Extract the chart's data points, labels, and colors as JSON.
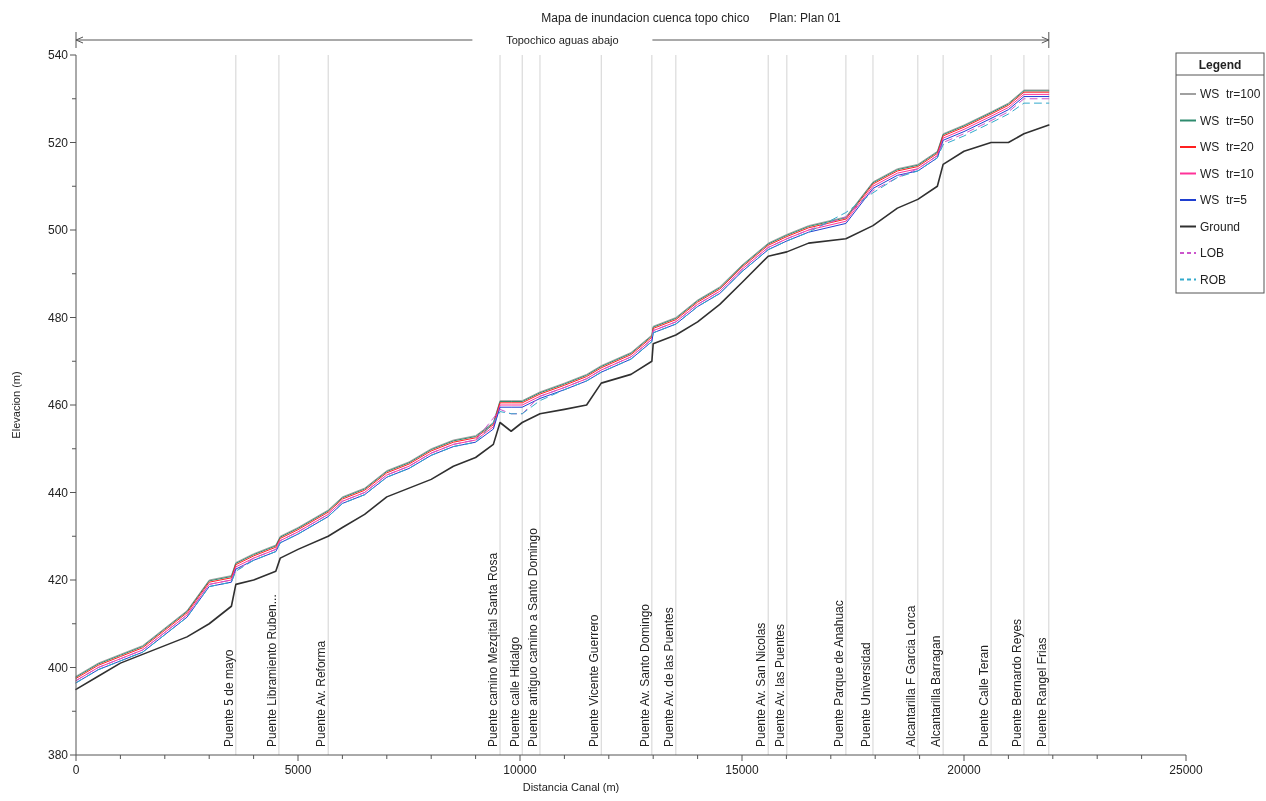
{
  "chart_data": {
    "type": "line",
    "title": "Mapa de inundacion cuenca topo chico      Plan: Plan 01",
    "xlabel": "Distancia Canal (m)",
    "ylabel": "Elevacion (m)",
    "legend_title": "Legend",
    "x": [
      0,
      500,
      1000,
      1500,
      2000,
      2500,
      3000,
      3500,
      3600,
      4000,
      4500,
      4600,
      5000,
      5680,
      6000,
      6500,
      7000,
      7500,
      8000,
      8500,
      9000,
      9400,
      9550,
      9800,
      10050,
      10450,
      11000,
      11500,
      11830,
      12500,
      12970,
      13000,
      13510,
      14000,
      14500,
      15000,
      15590,
      16010,
      16500,
      17340,
      17950,
      18500,
      18960,
      19400,
      19530,
      20000,
      20610,
      21000,
      21350,
      21910
    ],
    "xlim": [
      0,
      25000
    ],
    "ylim": [
      380,
      540
    ],
    "xticks": [
      0,
      {
        "value": 1000,
        "label": null
      },
      {
        "value": 2000,
        "label": null
      },
      {
        "value": 3000,
        "label": null
      },
      {
        "value": 4000,
        "label": null
      },
      5000,
      {
        "value": 6000,
        "label": null
      },
      {
        "value": 7000,
        "label": null
      },
      {
        "value": 8000,
        "label": null
      },
      {
        "value": 9000,
        "label": null
      },
      10000,
      {
        "value": 11000,
        "label": null
      },
      {
        "value": 12000,
        "label": null
      },
      {
        "value": 13000,
        "label": null
      },
      {
        "value": 14000,
        "label": null
      },
      15000,
      {
        "value": 16000,
        "label": null
      },
      {
        "value": 17000,
        "label": null
      },
      {
        "value": 18000,
        "label": null
      },
      {
        "value": 19000,
        "label": null
      },
      20000,
      {
        "value": 21000,
        "label": null
      },
      {
        "value": 22000,
        "label": null
      },
      {
        "value": 23000,
        "label": null
      },
      {
        "value": 24000,
        "label": null
      },
      25000
    ],
    "yticks": [
      380,
      {
        "value": 390,
        "label": null
      },
      400,
      {
        "value": 410,
        "label": null
      },
      420,
      {
        "value": 430,
        "label": null
      },
      440,
      {
        "value": 450,
        "label": null
      },
      460,
      {
        "value": 470,
        "label": null
      },
      480,
      {
        "value": 490,
        "label": null
      },
      500,
      {
        "value": 510,
        "label": null
      },
      520,
      {
        "value": 530,
        "label": null
      },
      540
    ],
    "grid": false,
    "legend": "right",
    "marker": "none",
    "series": [
      {
        "name": "WS  tr=100",
        "color": "#a0a0a0",
        "line_style": "solid",
        "values": [
          398,
          401,
          403,
          405,
          409,
          413,
          420,
          421,
          424,
          426,
          428,
          430,
          432,
          436,
          439,
          441,
          445,
          447,
          450,
          452,
          453,
          456,
          461,
          461,
          461,
          463,
          465,
          467,
          469,
          472,
          476,
          478,
          480,
          484,
          487,
          492,
          497,
          499,
          501,
          503,
          511,
          514,
          515,
          518,
          522,
          524,
          527,
          529,
          532,
          532
        ]
      },
      {
        "name": "WS  tr=50",
        "color": "#2e8b6e",
        "line_style": "solid",
        "values": [
          397.8,
          400.8,
          402.8,
          404.8,
          408.8,
          412.8,
          419.8,
          420.8,
          423.8,
          425.8,
          427.8,
          429.8,
          431.8,
          435.8,
          438.8,
          440.8,
          444.8,
          446.8,
          449.8,
          451.8,
          452.8,
          455.8,
          460.8,
          460.8,
          460.8,
          462.8,
          464.8,
          466.8,
          468.8,
          471.8,
          475.8,
          477.8,
          479.8,
          483.8,
          486.8,
          491.8,
          496.8,
          498.8,
          500.8,
          502.8,
          510.8,
          513.8,
          514.8,
          517.8,
          521.8,
          523.8,
          526.8,
          528.8,
          531.8,
          531.8
        ]
      },
      {
        "name": "WS  tr=20",
        "color": "#ff2020",
        "line_style": "solid",
        "values": [
          397.5,
          400.5,
          402.5,
          404.5,
          408.5,
          412.5,
          419.5,
          420.5,
          423.5,
          425.5,
          427.5,
          429.5,
          431.5,
          435.5,
          438.5,
          440.5,
          444.5,
          446.5,
          449.5,
          451.5,
          452.5,
          455.5,
          460.5,
          460.5,
          460.5,
          462.5,
          464.5,
          466.5,
          468.5,
          471.5,
          475.5,
          477.5,
          479.5,
          483.5,
          486.5,
          491.5,
          496.5,
          498.5,
          500.5,
          502.5,
          510.5,
          513.5,
          514.5,
          517.5,
          521.5,
          523.5,
          526.5,
          528.5,
          531.5,
          531.5
        ]
      },
      {
        "name": "WS  tr=10",
        "color": "#ff3399",
        "line_style": "solid",
        "values": [
          397,
          400,
          402,
          404,
          408,
          412,
          419,
          420,
          423,
          425,
          427,
          429,
          431,
          435,
          438,
          440,
          444,
          446,
          449,
          451,
          452,
          455,
          460,
          460,
          460,
          462,
          464,
          466,
          468,
          471,
          475,
          477,
          479,
          483,
          486,
          491,
          496,
          498,
          500,
          502,
          510,
          513,
          514,
          517,
          521,
          523,
          526,
          528,
          531,
          531
        ]
      },
      {
        "name": "WS  tr=5",
        "color": "#1f3fd0",
        "line_style": "solid",
        "values": [
          396.5,
          399.5,
          401.5,
          403.5,
          407.5,
          411.5,
          418.5,
          419.5,
          422.5,
          424.5,
          426.5,
          428.5,
          430.5,
          434.5,
          437.5,
          439.5,
          443.5,
          445.5,
          448.5,
          450.5,
          451.5,
          454.5,
          459.5,
          459.5,
          459.5,
          461.5,
          463.5,
          465.5,
          467.5,
          470.5,
          474.5,
          476.5,
          478.5,
          482.5,
          485.5,
          490.5,
          495.5,
          497.5,
          499.5,
          501.5,
          509.5,
          512.5,
          513.5,
          516.5,
          520.5,
          522.5,
          525.5,
          527.5,
          530.5,
          530.5
        ]
      },
      {
        "name": "Ground",
        "color": "#303030",
        "line_style": "solid",
        "values": [
          395,
          398,
          401,
          403,
          405,
          407,
          410,
          414,
          419,
          420,
          422,
          425,
          427,
          430,
          432,
          435,
          439,
          441,
          443,
          446,
          448,
          451,
          456,
          454,
          456,
          458,
          459,
          460,
          465,
          467,
          470,
          474,
          476,
          479,
          483,
          488,
          494,
          495,
          497,
          498,
          501,
          505,
          507,
          510,
          515,
          518,
          520,
          520,
          522,
          524
        ]
      },
      {
        "name": "LOB",
        "color": "#cc55cc",
        "line_style": "dashed",
        "values": [
          397,
          400,
          402,
          404,
          408,
          412,
          419,
          420,
          422,
          425,
          427,
          429,
          431,
          435,
          438,
          440,
          444,
          446,
          449,
          451,
          452,
          457,
          459,
          458,
          458,
          462,
          464,
          466,
          468,
          471,
          475,
          477,
          479,
          483,
          486,
          491,
          496,
          498,
          500,
          503,
          509,
          512,
          514,
          517,
          520,
          522,
          525,
          527,
          530,
          530
        ]
      },
      {
        "name": "ROB",
        "color": "#33aacc",
        "line_style": "dashed",
        "values": [
          396.5,
          399.5,
          401.5,
          403.5,
          407.5,
          411.5,
          418.5,
          419.5,
          422,
          424.5,
          426.5,
          428.5,
          430.5,
          434.5,
          437.5,
          439.5,
          443.5,
          445.5,
          448.5,
          450.5,
          451.5,
          456,
          458.5,
          458,
          458,
          461,
          463.5,
          465.5,
          467.5,
          470.5,
          474.5,
          476.5,
          478.5,
          482.5,
          485.5,
          490.5,
          495.5,
          497.5,
          499.5,
          504,
          508.5,
          512,
          513.5,
          516.5,
          519.5,
          521.5,
          524.5,
          526.5,
          529,
          529
        ]
      }
    ],
    "annotations": [
      "Topochico aguas abajo"
    ],
    "ref_lines": [
      {
        "axis": "x",
        "value": 3600,
        "label": "Puente 5 de mayo"
      },
      {
        "axis": "x",
        "value": 4570,
        "label": "Puente Libramiento Ruben..."
      },
      {
        "axis": "x",
        "value": 5680,
        "label": "Puente Av.  Reforma"
      },
      {
        "axis": "x",
        "value": 9550,
        "label": "Puente camino Mezqital Santa Rosa"
      },
      {
        "axis": "x",
        "value": 10050,
        "label": "Puente calle Hidalgo"
      },
      {
        "axis": "x",
        "value": 10450,
        "label": "Puente antiguo camino a Santo Domingo"
      },
      {
        "axis": "x",
        "value": 11830,
        "label": "Puente Vicente Guerrero"
      },
      {
        "axis": "x",
        "value": 12970,
        "label": "Puente Av.  Santo Domingo"
      },
      {
        "axis": "x",
        "value": 13510,
        "label": "Puente Av.  de las Puentes"
      },
      {
        "axis": "x",
        "value": 15590,
        "label": "Puente Av.  San Nicolas"
      },
      {
        "axis": "x",
        "value": 16010,
        "label": "Puente Av.  las Puentes"
      },
      {
        "axis": "x",
        "value": 17340,
        "label": "Puente Parque de Anahuac"
      },
      {
        "axis": "x",
        "value": 17950,
        "label": "Puente Universidad"
      },
      {
        "axis": "x",
        "value": 18960,
        "label": "Alcantarilla F Garcia Lorca"
      },
      {
        "axis": "x",
        "value": 19530,
        "label": "Alcantarilla Barragan"
      },
      {
        "axis": "x",
        "value": 20610,
        "label": "Puente Calle Teran"
      },
      {
        "axis": "x",
        "value": 21350,
        "label": "Puente Bernardo Reyes"
      },
      {
        "axis": "x",
        "value": 21910,
        "label": "Puente Rangel Frias"
      }
    ]
  }
}
